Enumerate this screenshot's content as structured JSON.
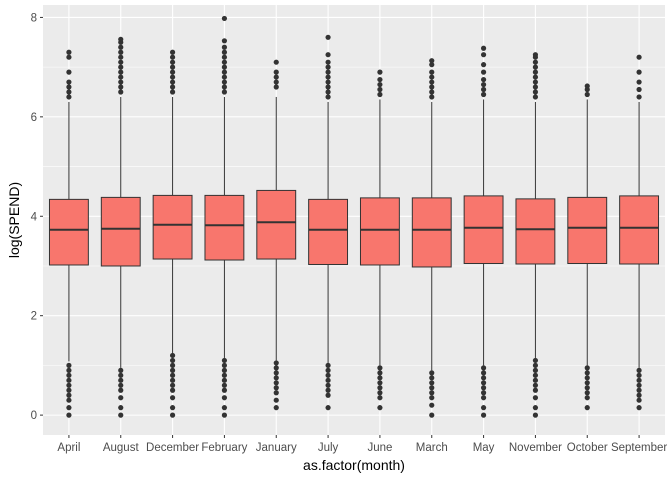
{
  "chart_data": {
    "type": "boxplot",
    "title": "",
    "xlabel": "as.factor(month)",
    "ylabel": "log(SPEND)",
    "ylim": [
      -0.4,
      8.25
    ],
    "yticks": [
      0,
      2,
      4,
      6,
      8
    ],
    "grid": true,
    "legend": "none",
    "colors": {
      "panel_bg": "#ebebeb",
      "grid_major": "#ffffff",
      "box_fill": "#f8766d",
      "box_stroke": "#333333",
      "tick_text": "#4d4d4d",
      "axis_title": "#000000"
    },
    "categories": [
      "April",
      "August",
      "December",
      "February",
      "January",
      "July",
      "June",
      "March",
      "May",
      "November",
      "October",
      "September"
    ],
    "boxes": [
      {
        "min": 1.08,
        "q1": 3.02,
        "median": 3.73,
        "q3": 4.34,
        "max": 6.3,
        "outliers_high": [
          6.4,
          6.5,
          6.6,
          6.7,
          6.9,
          7.2,
          7.3
        ],
        "outliers_low": [
          1.0,
          0.9,
          0.8,
          0.7,
          0.6,
          0.5,
          0.4,
          0.3,
          0.15,
          0.0
        ]
      },
      {
        "min": 0.95,
        "q1": 3.0,
        "median": 3.75,
        "q3": 4.38,
        "max": 6.4,
        "outliers_high": [
          6.5,
          6.6,
          6.7,
          6.8,
          6.9,
          7.0,
          7.1,
          7.2,
          7.3,
          7.4,
          7.5,
          7.56
        ],
        "outliers_low": [
          0.9,
          0.8,
          0.7,
          0.6,
          0.5,
          0.35,
          0.15,
          0.0
        ]
      },
      {
        "min": 1.25,
        "q1": 3.14,
        "median": 3.83,
        "q3": 4.42,
        "max": 6.4,
        "outliers_high": [
          6.5,
          6.6,
          6.7,
          6.8,
          6.9,
          7.0,
          7.1,
          7.2,
          7.3
        ],
        "outliers_low": [
          1.2,
          1.1,
          1.0,
          0.9,
          0.8,
          0.7,
          0.6,
          0.5,
          0.35,
          0.15,
          0.0
        ]
      },
      {
        "min": 1.15,
        "q1": 3.12,
        "median": 3.82,
        "q3": 4.42,
        "max": 6.4,
        "outliers_high": [
          6.5,
          6.6,
          6.7,
          6.8,
          6.9,
          7.0,
          7.1,
          7.2,
          7.3,
          7.4,
          7.53,
          7.98
        ],
        "outliers_low": [
          1.1,
          1.0,
          0.9,
          0.8,
          0.7,
          0.6,
          0.5,
          0.35,
          0.15,
          0.0
        ]
      },
      {
        "min": 1.1,
        "q1": 3.14,
        "median": 3.88,
        "q3": 4.52,
        "max": 6.4,
        "outliers_high": [
          6.6,
          6.7,
          6.8,
          6.9,
          7.1
        ],
        "outliers_low": [
          1.05,
          0.95,
          0.85,
          0.75,
          0.65,
          0.55,
          0.45,
          0.3,
          0.15
        ]
      },
      {
        "min": 1.05,
        "q1": 3.03,
        "median": 3.73,
        "q3": 4.34,
        "max": 6.3,
        "outliers_high": [
          6.4,
          6.5,
          6.6,
          6.7,
          6.8,
          6.9,
          7.0,
          7.1,
          7.25,
          7.6
        ],
        "outliers_low": [
          1.0,
          0.9,
          0.8,
          0.7,
          0.6,
          0.5,
          0.4,
          0.15
        ]
      },
      {
        "min": 1.0,
        "q1": 3.02,
        "median": 3.73,
        "q3": 4.37,
        "max": 6.35,
        "outliers_high": [
          6.45,
          6.55,
          6.65,
          6.75,
          6.9
        ],
        "outliers_low": [
          0.95,
          0.85,
          0.75,
          0.65,
          0.55,
          0.45,
          0.35,
          0.15
        ]
      },
      {
        "min": 0.9,
        "q1": 2.98,
        "median": 3.73,
        "q3": 4.37,
        "max": 6.3,
        "outliers_high": [
          6.4,
          6.5,
          6.6,
          6.7,
          6.8,
          6.9,
          7.05,
          7.13
        ],
        "outliers_low": [
          0.85,
          0.75,
          0.65,
          0.55,
          0.45,
          0.35,
          0.2,
          0.0
        ]
      },
      {
        "min": 1.0,
        "q1": 3.05,
        "median": 3.77,
        "q3": 4.41,
        "max": 6.35,
        "outliers_high": [
          6.45,
          6.55,
          6.65,
          6.75,
          6.9,
          7.05,
          7.25,
          7.38
        ],
        "outliers_low": [
          0.95,
          0.85,
          0.75,
          0.65,
          0.55,
          0.45,
          0.35,
          0.15,
          0.0
        ]
      },
      {
        "min": 1.15,
        "q1": 3.04,
        "median": 3.74,
        "q3": 4.35,
        "max": 6.3,
        "outliers_high": [
          6.4,
          6.5,
          6.6,
          6.7,
          6.8,
          6.9,
          7.0,
          7.1,
          7.2,
          7.25
        ],
        "outliers_low": [
          1.1,
          1.0,
          0.9,
          0.8,
          0.7,
          0.6,
          0.5,
          0.35,
          0.15,
          0.0
        ]
      },
      {
        "min": 1.0,
        "q1": 3.05,
        "median": 3.77,
        "q3": 4.38,
        "max": 6.35,
        "outliers_high": [
          6.45,
          6.55,
          6.62
        ],
        "outliers_low": [
          0.95,
          0.85,
          0.75,
          0.65,
          0.55,
          0.45,
          0.35,
          0.15
        ]
      },
      {
        "min": 0.95,
        "q1": 3.04,
        "median": 3.77,
        "q3": 4.41,
        "max": 6.3,
        "outliers_high": [
          6.4,
          6.55,
          6.7,
          6.9,
          7.2
        ],
        "outliers_low": [
          0.9,
          0.8,
          0.7,
          0.6,
          0.5,
          0.4,
          0.3,
          0.15
        ]
      }
    ]
  }
}
